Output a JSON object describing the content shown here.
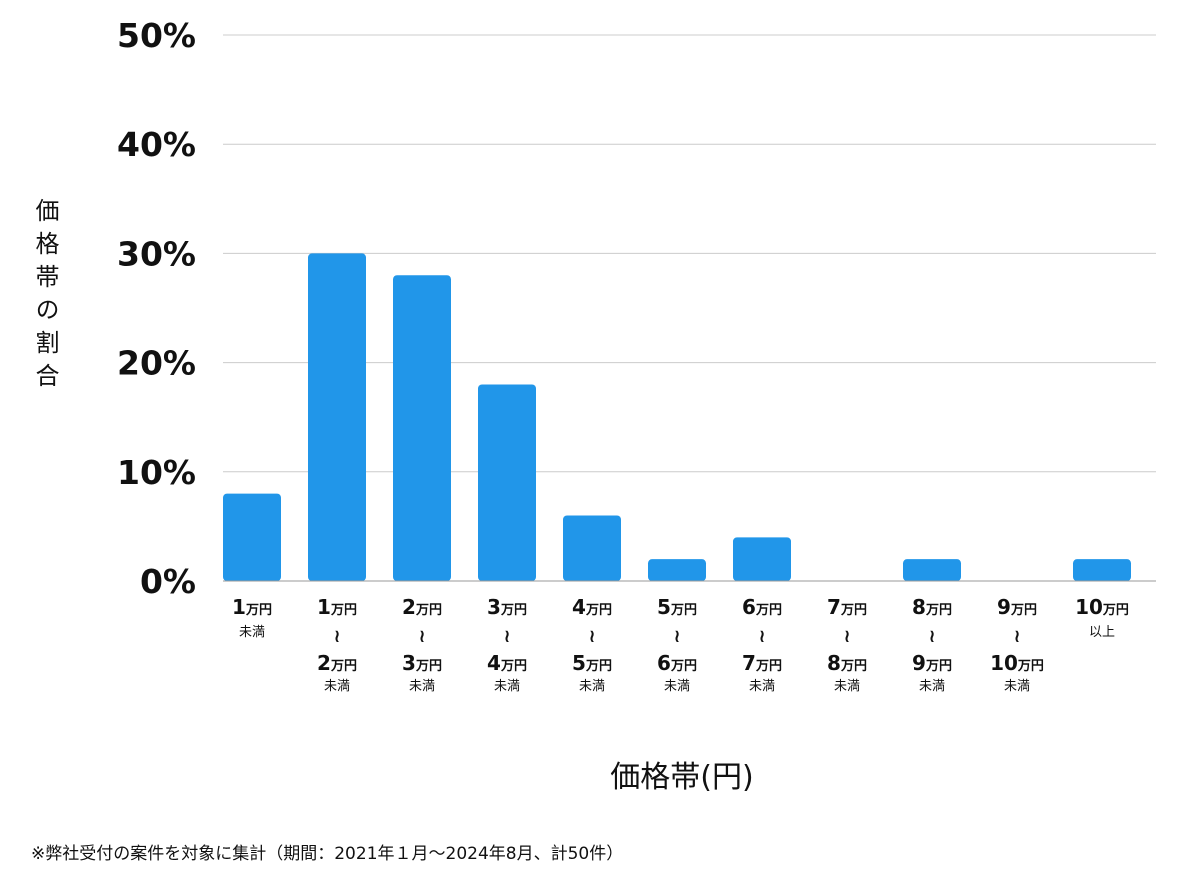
{
  "chart_data": {
    "type": "bar",
    "categories": [
      {
        "top": "1",
        "top_unit": "万円",
        "bottom": "",
        "bottom_unit": "",
        "note": "未満"
      },
      {
        "top": "1",
        "top_unit": "万円",
        "bottom": "2",
        "bottom_unit": "万円",
        "note": "未満"
      },
      {
        "top": "2",
        "top_unit": "万円",
        "bottom": "3",
        "bottom_unit": "万円",
        "note": "未満"
      },
      {
        "top": "3",
        "top_unit": "万円",
        "bottom": "4",
        "bottom_unit": "万円",
        "note": "未満"
      },
      {
        "top": "4",
        "top_unit": "万円",
        "bottom": "5",
        "bottom_unit": "万円",
        "note": "未満"
      },
      {
        "top": "5",
        "top_unit": "万円",
        "bottom": "6",
        "bottom_unit": "万円",
        "note": "未満"
      },
      {
        "top": "6",
        "top_unit": "万円",
        "bottom": "7",
        "bottom_unit": "万円",
        "note": "未満"
      },
      {
        "top": "7",
        "top_unit": "万円",
        "bottom": "8",
        "bottom_unit": "万円",
        "note": "未満"
      },
      {
        "top": "8",
        "top_unit": "万円",
        "bottom": "9",
        "bottom_unit": "万円",
        "note": "未満"
      },
      {
        "top": "9",
        "top_unit": "万円",
        "bottom": "10",
        "bottom_unit": "万円",
        "note": "未満"
      },
      {
        "top": "10",
        "top_unit": "万円",
        "bottom": "",
        "bottom_unit": "",
        "note": "以上"
      }
    ],
    "range_symbol": "≀",
    "values": [
      8,
      30,
      28,
      18,
      6,
      2,
      4,
      0,
      2,
      0,
      2
    ],
    "ylim": [
      0,
      50
    ],
    "yticks": [
      0,
      10,
      20,
      30,
      40,
      50
    ],
    "ytick_labels": [
      "0%",
      "10%",
      "20%",
      "30%",
      "40%",
      "50%"
    ],
    "xlabel": "価格帯(円)",
    "ylabel": "価格帯の割合",
    "grid": true,
    "bar_color": "#2196e9",
    "grid_color": "#cccccc",
    "axis_color": "#999999"
  },
  "footnote": "※弊社受付の案件を対象に集計（期間：2021年１月〜2024年8月、計50件）"
}
